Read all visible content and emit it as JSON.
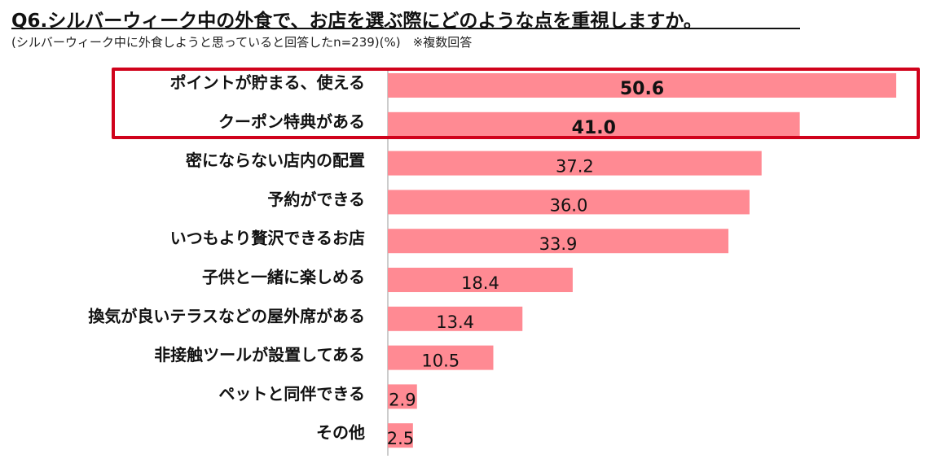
{
  "title": "Q6.シルバーウィーク中の外食で、お店を選ぶ際にどのような点を重視しますか。",
  "subtitle": "(シルバーウィーク中に外食しようと思っていると回答したn=239)(%)　※複数回答",
  "colors": {
    "bar": "#ff8a93",
    "highlight_border": "#d0021b",
    "axis": "#999999",
    "text": "#111111"
  },
  "chart_data": {
    "type": "bar",
    "orientation": "horizontal",
    "categories": [
      "ポイントが貯まる、使える",
      "クーポン特典がある",
      "密にならない店内の配置",
      "予約ができる",
      "いつもより贅沢できるお店",
      "子供と一緒に楽しめる",
      "換気が良いテラスなどの屋外席がある",
      "非接触ツールが設置してある",
      "ペットと同伴できる",
      "その他"
    ],
    "values": [
      50.6,
      41.0,
      37.2,
      36.0,
      33.9,
      18.4,
      13.4,
      10.5,
      2.9,
      2.5
    ],
    "value_labels": [
      "50.6",
      "41.0",
      "37.2",
      "36.0",
      "33.9",
      "18.4",
      "13.4",
      "10.5",
      "2.9",
      "2.5"
    ],
    "highlighted": [
      true,
      true,
      false,
      false,
      false,
      false,
      false,
      false,
      false,
      false
    ],
    "xlim": [
      0,
      55
    ],
    "grid": false,
    "legend": "none"
  }
}
